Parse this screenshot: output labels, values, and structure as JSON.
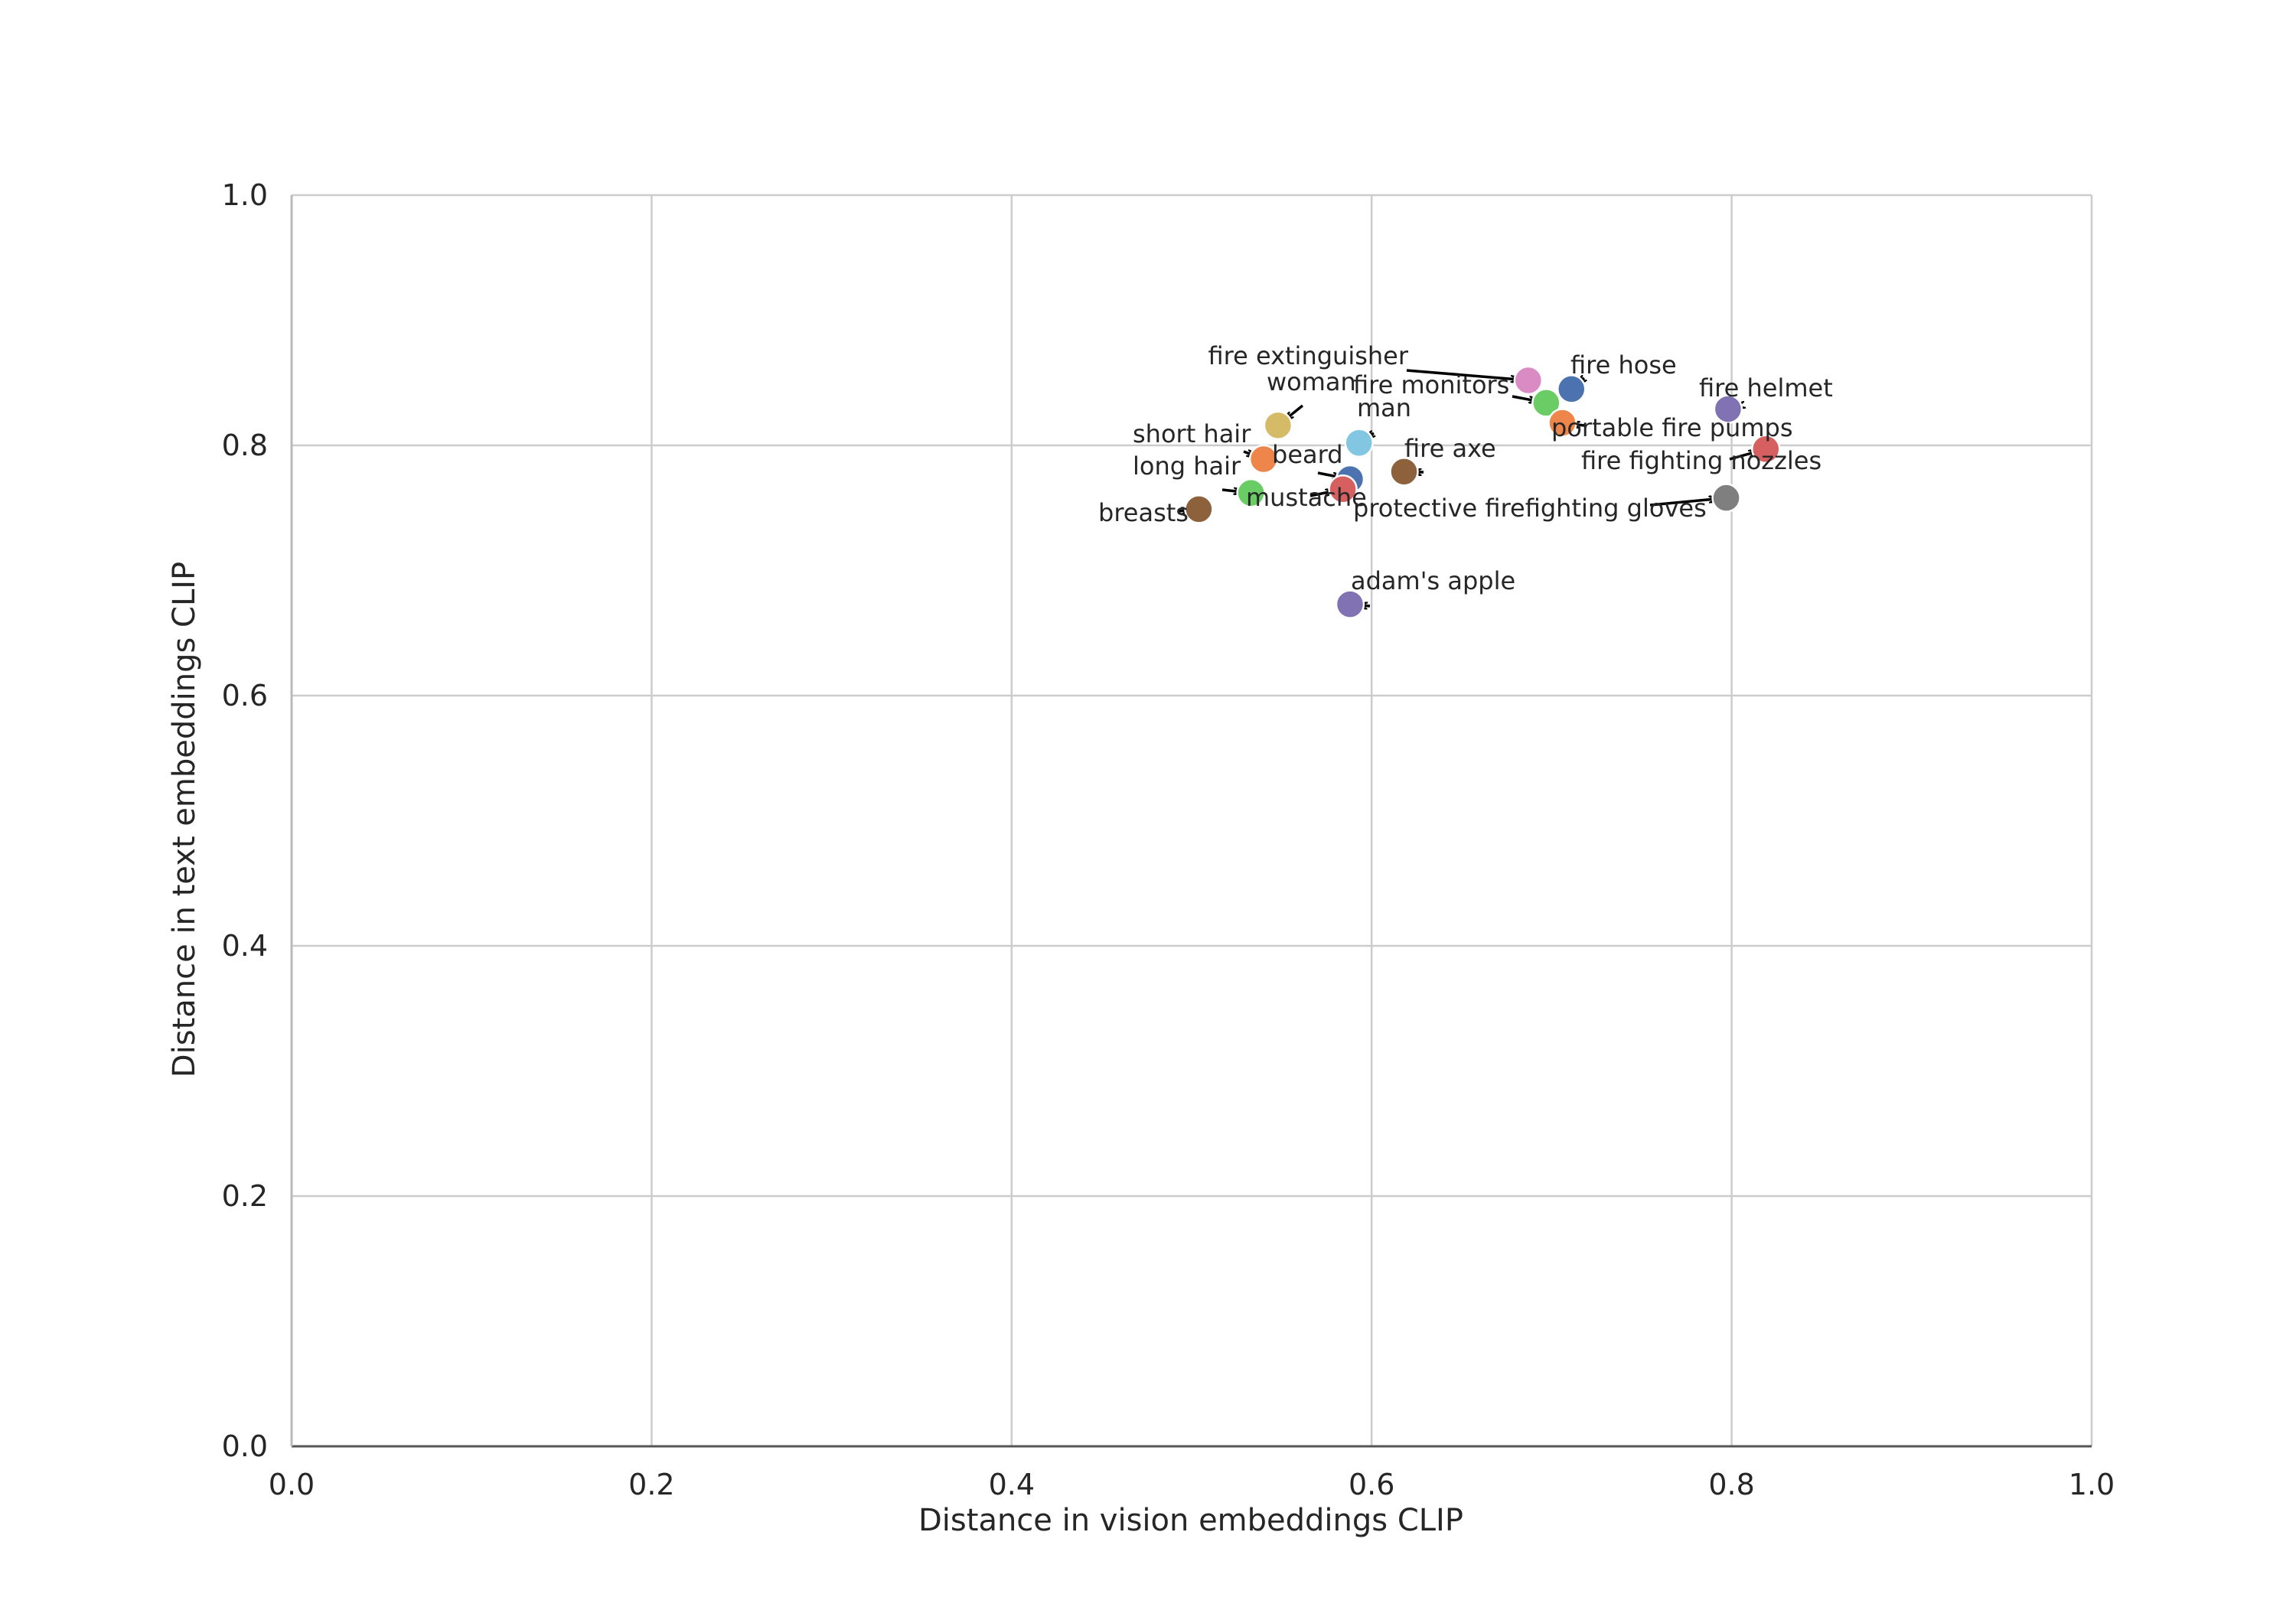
{
  "chart_data": {
    "type": "scatter",
    "title": "",
    "xlabel": "Distance in vision embeddings CLIP",
    "ylabel": "Distance in text embeddings CLIP",
    "xlim": [
      0.0,
      1.0
    ],
    "ylim": [
      0.0,
      1.0
    ],
    "xticks": [
      "0.0",
      "0.2",
      "0.4",
      "0.6",
      "0.8",
      "1.0"
    ],
    "yticks": [
      "0.0",
      "0.2",
      "0.4",
      "0.6",
      "0.8",
      "1.0"
    ],
    "grid": true,
    "legend": "none",
    "points": [
      {
        "label": "fire extinguisher",
        "x": 0.687,
        "y": 0.852,
        "color": "#da8bc3"
      },
      {
        "label": "fire hose",
        "x": 0.711,
        "y": 0.845,
        "color": "#4c72b0"
      },
      {
        "label": "fire monitors",
        "x": 0.697,
        "y": 0.834,
        "color": "#6acc64"
      },
      {
        "label": "fire helmet",
        "x": 0.798,
        "y": 0.829,
        "color": "#8172b3"
      },
      {
        "label": "portable fire pumps",
        "x": 0.706,
        "y": 0.818,
        "color": "#ee854a"
      },
      {
        "label": "fire fighting nozzles",
        "x": 0.819,
        "y": 0.797,
        "color": "#d65f5f"
      },
      {
        "label": "protective firefighting gloves",
        "x": 0.797,
        "y": 0.758,
        "color": "#7f7f7f"
      },
      {
        "label": "fire axe",
        "x": 0.618,
        "y": 0.779,
        "color": "#8c613c"
      },
      {
        "label": "woman",
        "x": 0.548,
        "y": 0.816,
        "color": "#d5bb67"
      },
      {
        "label": "man",
        "x": 0.593,
        "y": 0.802,
        "color": "#82c6e2"
      },
      {
        "label": "short hair",
        "x": 0.54,
        "y": 0.789,
        "color": "#ee854a"
      },
      {
        "label": "beard",
        "x": 0.588,
        "y": 0.773,
        "color": "#4c72b0"
      },
      {
        "label": "mustache",
        "x": 0.584,
        "y": 0.765,
        "color": "#d65f5f"
      },
      {
        "label": "long hair",
        "x": 0.533,
        "y": 0.762,
        "color": "#6acc64"
      },
      {
        "label": "breasts",
        "x": 0.504,
        "y": 0.749,
        "color": "#8c613c"
      },
      {
        "label": "adam's apple",
        "x": 0.588,
        "y": 0.673,
        "color": "#8172b3"
      }
    ]
  }
}
